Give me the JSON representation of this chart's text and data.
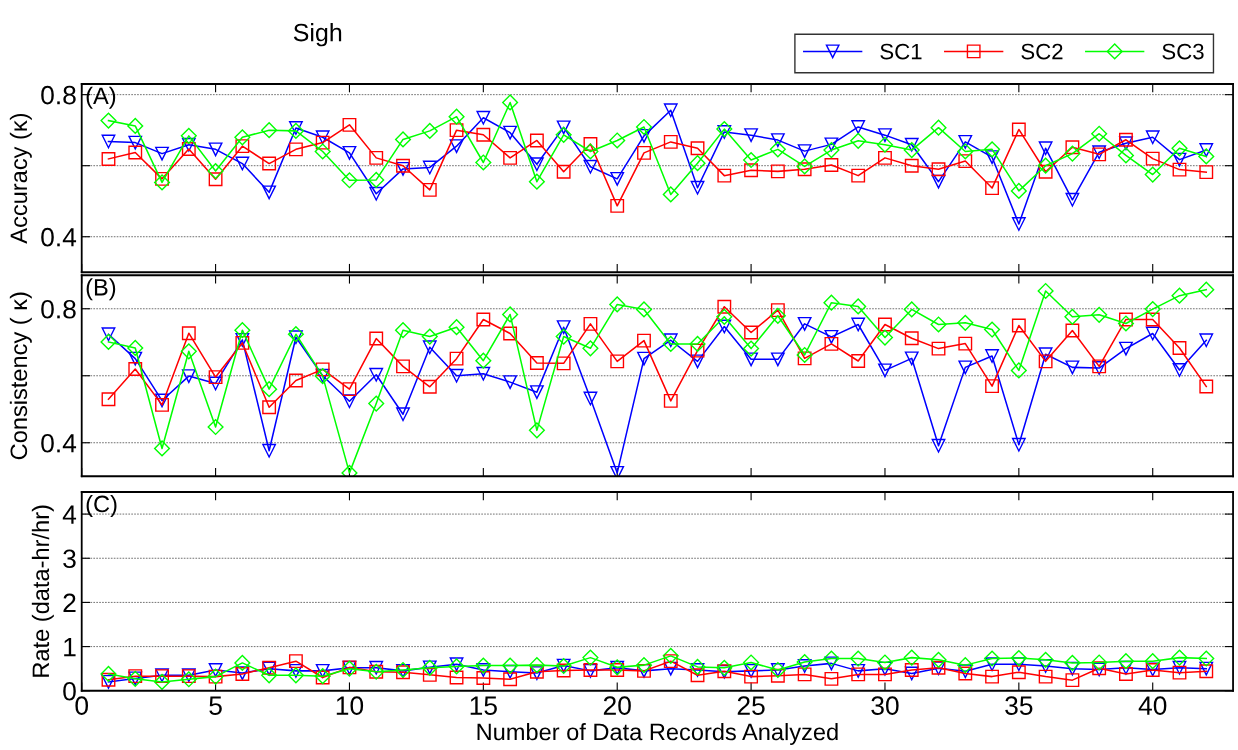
{
  "chart_data": [
    {
      "type": "line",
      "title": "Sigh",
      "ylabel": "Accuracy (κ)",
      "annotations": [
        "(A)"
      ],
      "legend": "top right",
      "grid": "y",
      "tick_labels": "y",
      "x": [
        1,
        2,
        3,
        4,
        5,
        6,
        7,
        8,
        9,
        10,
        11,
        12,
        13,
        14,
        15,
        16,
        17,
        18,
        19,
        20,
        21,
        22,
        23,
        24,
        25,
        26,
        27,
        28,
        29,
        30,
        31,
        32,
        33,
        34,
        35,
        36,
        37,
        38,
        39,
        40,
        41,
        42
      ],
      "xlim": [
        0,
        43
      ],
      "xticks": [
        0,
        5,
        10,
        15,
        20,
        25,
        30,
        35,
        40
      ],
      "ylim": [
        0.3,
        0.83
      ],
      "yticks": [
        0.4,
        {
          "value": 0.6,
          "label": null
        },
        0.8
      ],
      "series": [
        {
          "name": "SC1",
          "color": "#0000ff",
          "marker": "triangle",
          "values": [
            0.668,
            0.665,
            0.634,
            0.659,
            0.646,
            0.606,
            0.525,
            0.706,
            0.68,
            0.636,
            0.521,
            0.591,
            0.595,
            0.655,
            0.735,
            0.693,
            0.604,
            0.708,
            0.597,
            0.563,
            0.684,
            0.756,
            0.538,
            0.695,
            0.686,
            0.672,
            0.641,
            0.66,
            0.709,
            0.686,
            0.659,
            0.555,
            0.667,
            0.624,
            0.436,
            0.649,
            0.504,
            0.638,
            0.663,
            0.68,
            0.617,
            0.644
          ]
        },
        {
          "name": "SC2",
          "color": "#ff0000",
          "marker": "square",
          "values": [
            0.619,
            0.637,
            0.563,
            0.647,
            0.562,
            0.655,
            0.606,
            0.646,
            0.665,
            0.715,
            0.622,
            0.6,
            0.532,
            0.7,
            0.687,
            0.622,
            0.671,
            0.583,
            0.661,
            0.487,
            0.636,
            0.667,
            0.649,
            0.572,
            0.587,
            0.584,
            0.59,
            0.602,
            0.572,
            0.622,
            0.6,
            0.59,
            0.613,
            0.537,
            0.702,
            0.583,
            0.652,
            0.632,
            0.673,
            0.62,
            0.589,
            0.582
          ]
        },
        {
          "name": "SC3",
          "color": "#00ff00",
          "marker": "diamond",
          "values": [
            0.727,
            0.712,
            0.553,
            0.684,
            0.585,
            0.68,
            0.7,
            0.698,
            0.64,
            0.559,
            0.56,
            0.674,
            0.698,
            0.738,
            0.609,
            0.778,
            0.555,
            0.687,
            0.64,
            0.671,
            0.709,
            0.519,
            0.607,
            0.703,
            0.616,
            0.646,
            0.598,
            0.644,
            0.67,
            0.659,
            0.644,
            0.707,
            0.64,
            0.646,
            0.529,
            0.6,
            0.634,
            0.69,
            0.629,
            0.575,
            0.649,
            0.626
          ]
        }
      ]
    },
    {
      "type": "line",
      "ylabel": "Consistency ( κ)",
      "annotations": [
        "(B)"
      ],
      "grid": "y",
      "tick_labels": "y",
      "x": [
        1,
        2,
        3,
        4,
        5,
        6,
        7,
        8,
        9,
        10,
        11,
        12,
        13,
        14,
        15,
        16,
        17,
        18,
        19,
        20,
        21,
        22,
        23,
        24,
        25,
        26,
        27,
        28,
        29,
        30,
        31,
        32,
        33,
        34,
        35,
        36,
        37,
        38,
        39,
        40,
        41,
        42
      ],
      "xlim": [
        0,
        43
      ],
      "xticks": [
        0,
        5,
        10,
        15,
        20,
        25,
        30,
        35,
        40
      ],
      "ylim": [
        0.3,
        0.9
      ],
      "yticks": [
        0.4,
        {
          "value": 0.6,
          "label": null
        },
        0.8
      ],
      "series": [
        {
          "color": "#0000ff",
          "marker": "triangle",
          "values": [
            0.724,
            0.651,
            0.526,
            0.599,
            0.577,
            0.707,
            0.376,
            0.715,
            0.6,
            0.524,
            0.603,
            0.485,
            0.685,
            0.6,
            0.606,
            0.581,
            0.551,
            0.745,
            0.532,
            0.31,
            0.651,
            0.706,
            0.643,
            0.747,
            0.649,
            0.649,
            0.755,
            0.716,
            0.753,
            0.616,
            0.652,
            0.391,
            0.625,
            0.659,
            0.394,
            0.664,
            0.625,
            0.623,
            0.681,
            0.726,
            0.617,
            0.706
          ]
        },
        {
          "color": "#ff0000",
          "marker": "square",
          "values": [
            0.53,
            0.62,
            0.513,
            0.727,
            0.596,
            0.698,
            0.506,
            0.586,
            0.619,
            0.56,
            0.711,
            0.628,
            0.567,
            0.651,
            0.768,
            0.726,
            0.638,
            0.637,
            0.755,
            0.643,
            0.705,
            0.525,
            0.675,
            0.806,
            0.729,
            0.796,
            0.652,
            0.695,
            0.644,
            0.753,
            0.712,
            0.681,
            0.696,
            0.569,
            0.75,
            0.643,
            0.735,
            0.628,
            0.768,
            0.768,
            0.683,
            0.568
          ]
        },
        {
          "color": "#00ff00",
          "marker": "diamond",
          "values": [
            0.701,
            0.683,
            0.383,
            0.673,
            0.447,
            0.736,
            0.56,
            0.724,
            0.599,
            0.31,
            0.517,
            0.736,
            0.717,
            0.745,
            0.645,
            0.783,
            0.437,
            0.717,
            0.682,
            0.813,
            0.798,
            0.695,
            0.695,
            0.776,
            0.681,
            0.779,
            0.662,
            0.818,
            0.807,
            0.714,
            0.798,
            0.753,
            0.758,
            0.738,
            0.616,
            0.853,
            0.776,
            0.782,
            0.756,
            0.799,
            0.839,
            0.857
          ]
        }
      ]
    },
    {
      "type": "line",
      "ylabel": "Rate (data-hr/hr)",
      "xlabel": "Number of Data Records Analyzed",
      "annotations": [
        "(C)"
      ],
      "grid": "y",
      "x": [
        1,
        2,
        3,
        4,
        5,
        6,
        7,
        8,
        9,
        10,
        11,
        12,
        13,
        14,
        15,
        16,
        17,
        18,
        19,
        20,
        21,
        22,
        23,
        24,
        25,
        26,
        27,
        28,
        29,
        30,
        31,
        32,
        33,
        34,
        35,
        36,
        37,
        38,
        39,
        40,
        41,
        42
      ],
      "xlim": [
        0,
        43
      ],
      "xticks": [
        0,
        5,
        10,
        15,
        20,
        25,
        30,
        35,
        40
      ],
      "ylim": [
        0,
        4.5
      ],
      "yticks": [
        0,
        1,
        2,
        3,
        4
      ],
      "series": [
        {
          "color": "#0000ff",
          "marker": "triangle",
          "values": [
            0.2,
            0.28,
            0.35,
            0.35,
            0.47,
            0.4,
            0.5,
            0.45,
            0.45,
            0.52,
            0.52,
            0.45,
            0.53,
            0.6,
            0.47,
            0.43,
            0.4,
            0.57,
            0.45,
            0.52,
            0.45,
            0.5,
            0.47,
            0.43,
            0.45,
            0.47,
            0.56,
            0.62,
            0.45,
            0.5,
            0.39,
            0.51,
            0.44,
            0.6,
            0.6,
            0.56,
            0.5,
            0.48,
            0.52,
            0.48,
            0.52,
            0.5
          ]
        },
        {
          "color": "#ff0000",
          "marker": "square",
          "values": [
            0.25,
            0.33,
            0.33,
            0.33,
            0.32,
            0.38,
            0.52,
            0.67,
            0.3,
            0.53,
            0.43,
            0.42,
            0.36,
            0.3,
            0.29,
            0.26,
            0.43,
            0.46,
            0.47,
            0.47,
            0.45,
            0.67,
            0.35,
            0.44,
            0.32,
            0.34,
            0.37,
            0.27,
            0.37,
            0.37,
            0.47,
            0.52,
            0.39,
            0.32,
            0.42,
            0.32,
            0.24,
            0.51,
            0.38,
            0.47,
            0.41,
            0.44
          ]
        },
        {
          "color": "#00ff00",
          "marker": "diamond",
          "values": [
            0.38,
            0.27,
            0.2,
            0.26,
            0.32,
            0.63,
            0.35,
            0.35,
            0.33,
            0.5,
            0.43,
            0.47,
            0.52,
            0.55,
            0.57,
            0.57,
            0.58,
            0.56,
            0.75,
            0.53,
            0.58,
            0.79,
            0.54,
            0.52,
            0.64,
            0.47,
            0.65,
            0.73,
            0.73,
            0.64,
            0.75,
            0.7,
            0.58,
            0.73,
            0.74,
            0.7,
            0.63,
            0.64,
            0.67,
            0.67,
            0.75,
            0.73
          ]
        }
      ]
    }
  ]
}
